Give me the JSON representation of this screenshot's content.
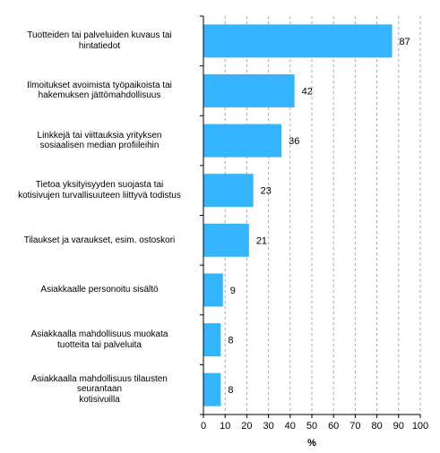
{
  "chart_data": {
    "type": "bar",
    "orientation": "horizontal",
    "categories": [
      "Tuotteiden tai palveluiden kuvaus tai\nhintatiedot",
      "Ilmoitukset avoimista työpaikoista tai\nhakemuksen jättömahdollisuus",
      "Linkkejä tai viittauksia yrityksen\nsosiaalisen median profiileihin",
      "Tietoa yksityisyyden suojasta tai\nkotisivujen turvallisuuteen liittyvä todistus",
      "Tilaukset ja varaukset, esim. ostoskori",
      "Asiakkaalle personoitu sisältö",
      "Asiakkaalla mahdollisuus muokata\ntuotteita tai palveluita",
      "Asiakkaalla mahdollisuus tilausten\nseurantaan\nkotisivuilla"
    ],
    "values": [
      87,
      42,
      36,
      23,
      21,
      9,
      8,
      8
    ],
    "title": "",
    "xlabel": "%",
    "ylabel": "",
    "xlim": [
      0,
      100
    ],
    "xticks": [
      0,
      10,
      20,
      30,
      40,
      50,
      60,
      70,
      80,
      90,
      100
    ],
    "grid": "vertical dashed",
    "legend": "none",
    "bar_color": "#33b5ff",
    "grid_color": "#aaaaaa",
    "axis_color": "#000000"
  }
}
